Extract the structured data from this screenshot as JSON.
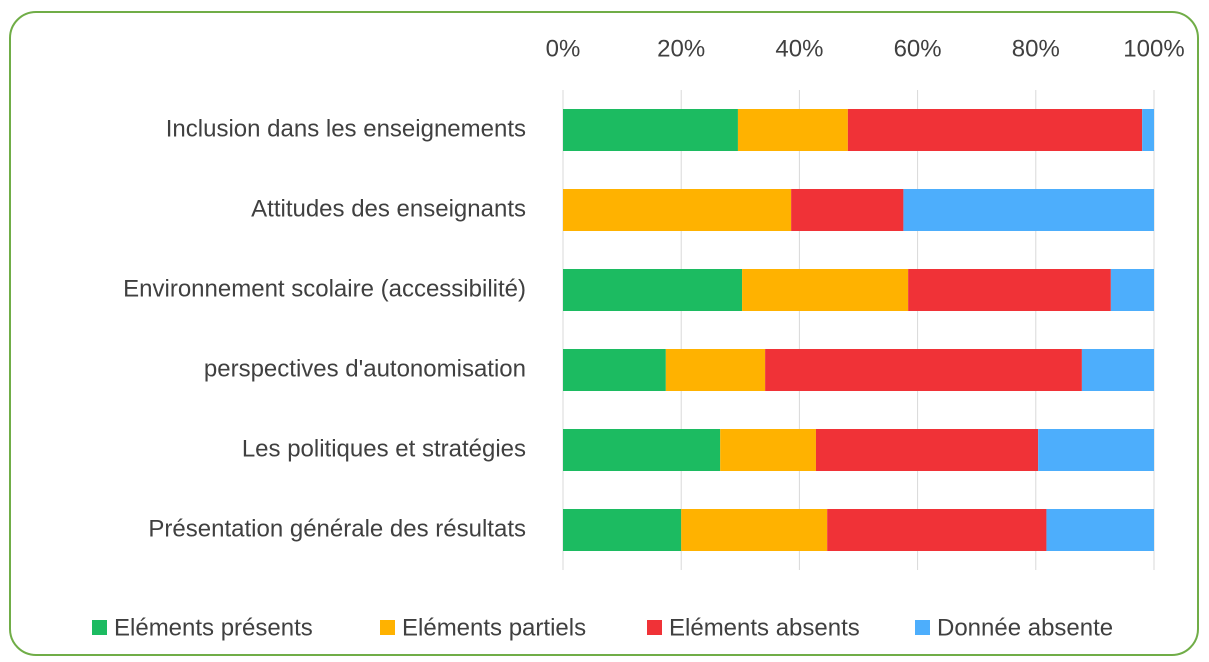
{
  "chart_data": {
    "type": "stacked_bar_horizontal",
    "categories": [
      "Inclusion dans les enseignements",
      "Attitudes des enseignants",
      "Environnement scolaire (accessibilité)",
      "perspectives d'autonomisation",
      "Les politiques et stratégies",
      "Présentation générale des résultats"
    ],
    "series": [
      {
        "name": "Eléments présents",
        "color": "#1cbb61",
        "values": [
          29.6,
          0,
          30.3,
          17.4,
          26.6,
          20.0
        ]
      },
      {
        "name": "Eléments partiels",
        "color": "#ffb200",
        "values": [
          18.6,
          38.6,
          28.1,
          16.8,
          16.2,
          24.7
        ]
      },
      {
        "name": "Eléments absents",
        "color": "#f03237",
        "values": [
          49.8,
          19.0,
          34.3,
          53.6,
          37.6,
          37.1
        ]
      },
      {
        "name": "Donnée absente",
        "color": "#4daefc",
        "values": [
          2.0,
          42.4,
          7.3,
          12.2,
          19.6,
          18.2
        ]
      }
    ],
    "xlim": [
      0,
      100
    ],
    "xticks": [
      {
        "value": 0,
        "label": "0%"
      },
      {
        "value": 20,
        "label": "20%"
      },
      {
        "value": 40,
        "label": "40%"
      },
      {
        "value": 60,
        "label": "60%"
      },
      {
        "value": 80,
        "label": "80%"
      },
      {
        "value": 100,
        "label": "100%"
      }
    ],
    "grid": true,
    "legend": "bottom"
  }
}
